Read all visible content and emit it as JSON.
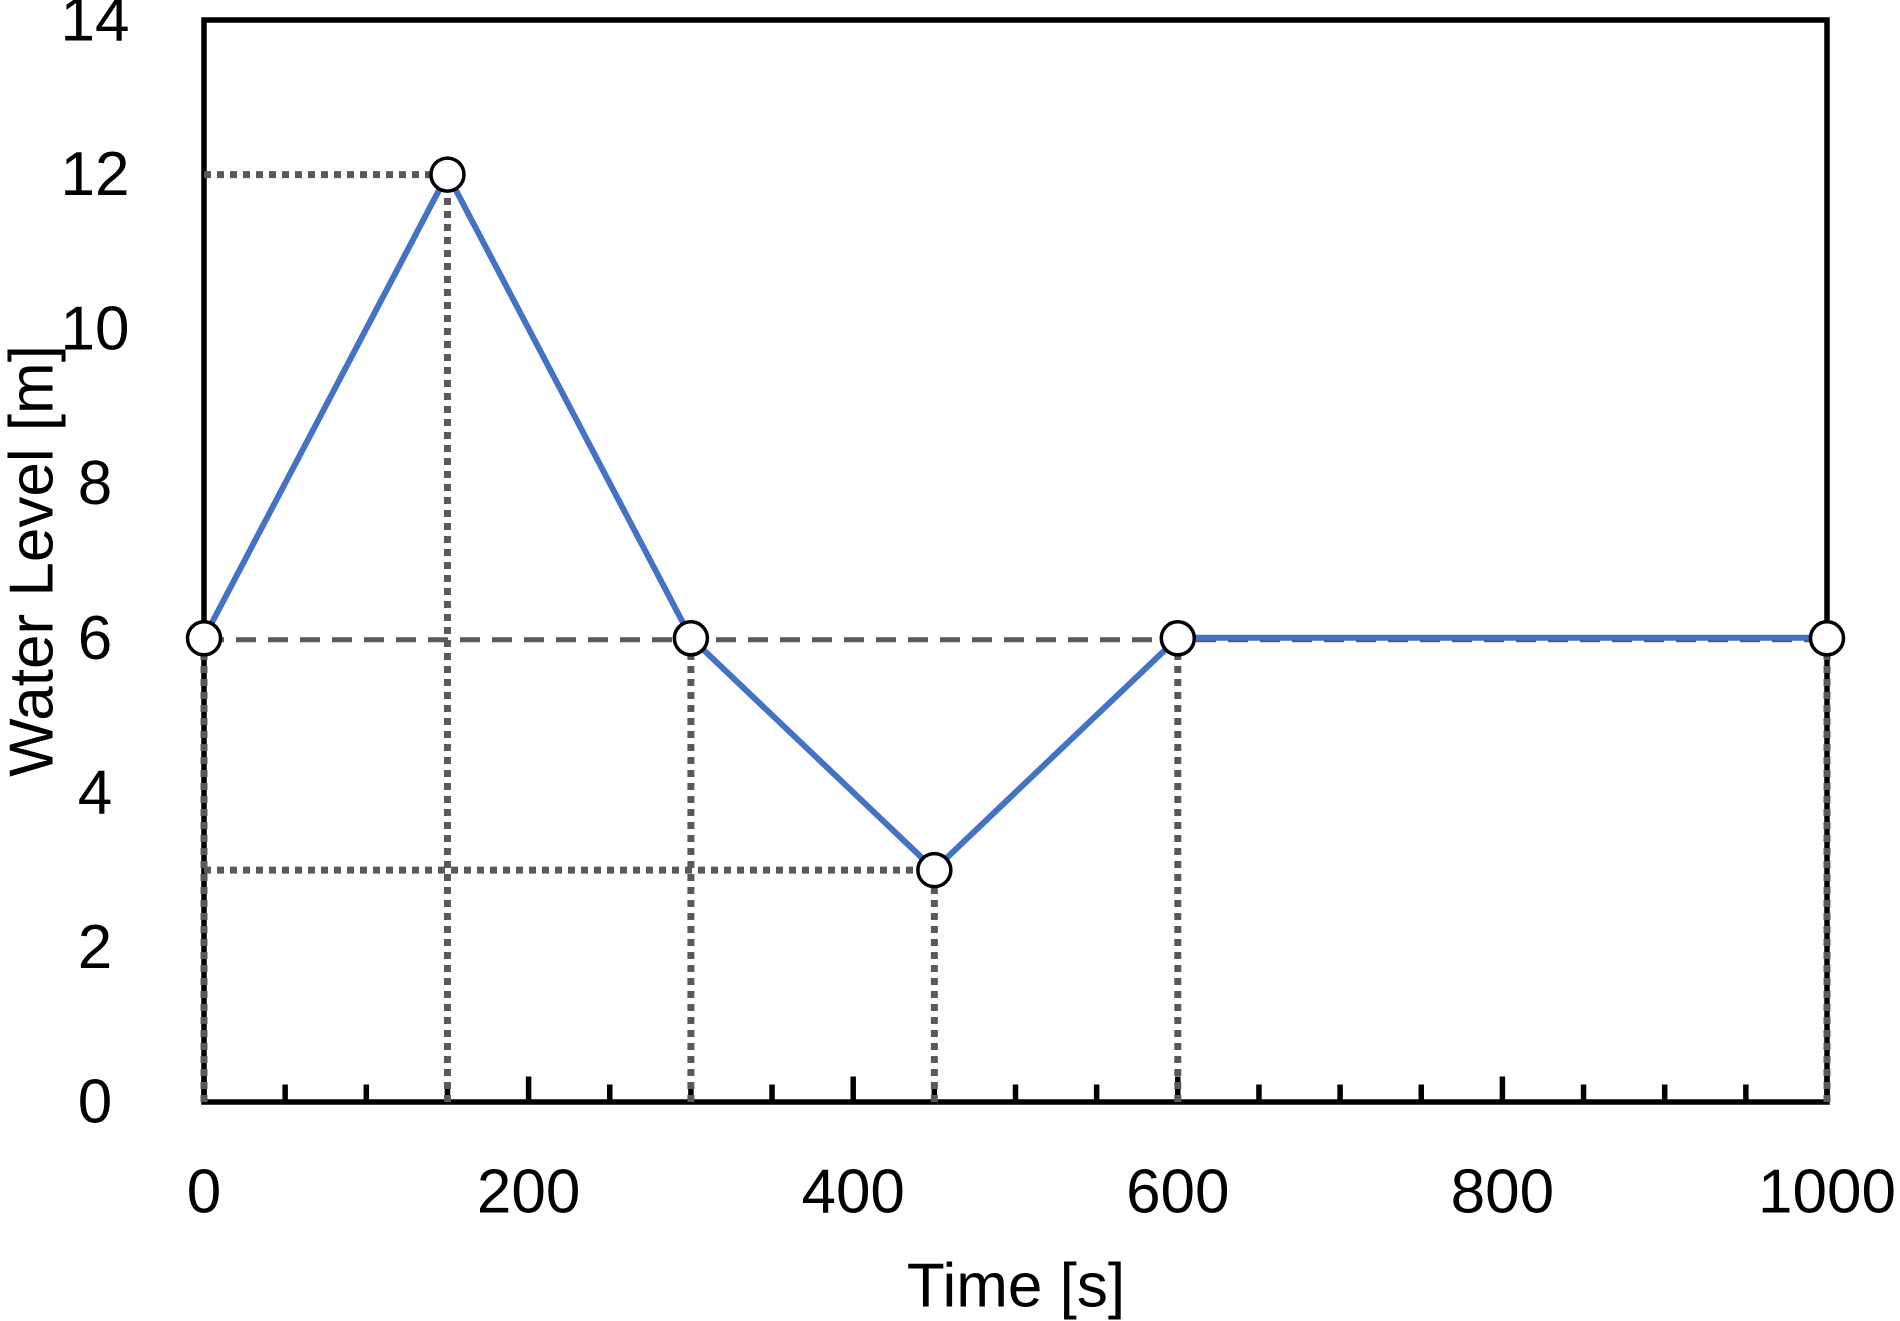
{
  "chart_data": {
    "type": "line",
    "title": "",
    "xlabel": "Time [s]",
    "ylabel": "Water Level [m]",
    "xlim": [
      0,
      1000
    ],
    "ylim": [
      0,
      14
    ],
    "x_tick_labels": [
      0,
      200,
      400,
      600,
      800,
      1000
    ],
    "x_minor_tick_step": 50,
    "y_tick_labels": [
      0,
      2,
      4,
      6,
      8,
      10,
      12,
      14
    ],
    "grid": false,
    "legend": null,
    "series": [
      {
        "name": "water-level",
        "x": [
          0,
          150,
          300,
          450,
          600,
          1000
        ],
        "y": [
          6,
          12,
          6,
          3,
          6,
          6
        ],
        "line_color": "#4472C4",
        "marker": {
          "shape": "circle",
          "fill": "#FFFFFF",
          "stroke": "#000000"
        }
      }
    ],
    "guides": [
      {
        "orient": "h",
        "y": 12,
        "x1": 0,
        "x2": 150,
        "style": "dot"
      },
      {
        "orient": "h",
        "y": 3,
        "x1": 0,
        "x2": 450,
        "style": "dot"
      },
      {
        "orient": "h",
        "y": 6,
        "x1": 0,
        "x2": 1000,
        "style": "dash"
      },
      {
        "orient": "v",
        "x": 0,
        "y1": 0,
        "y2": 6,
        "style": "dot"
      },
      {
        "orient": "v",
        "x": 150,
        "y1": 0,
        "y2": 12,
        "style": "dot"
      },
      {
        "orient": "v",
        "x": 300,
        "y1": 0,
        "y2": 6,
        "style": "dot"
      },
      {
        "orient": "v",
        "x": 450,
        "y1": 0,
        "y2": 3,
        "style": "dot"
      },
      {
        "orient": "v",
        "x": 600,
        "y1": 0,
        "y2": 6,
        "style": "dot"
      },
      {
        "orient": "v",
        "x": 1000,
        "y1": 0,
        "y2": 6,
        "style": "dot"
      }
    ],
    "colors": {
      "line": "#4472C4",
      "guide": "#595959",
      "axis": "#000000",
      "text": "#000000",
      "background": "#FFFFFF"
    }
  }
}
